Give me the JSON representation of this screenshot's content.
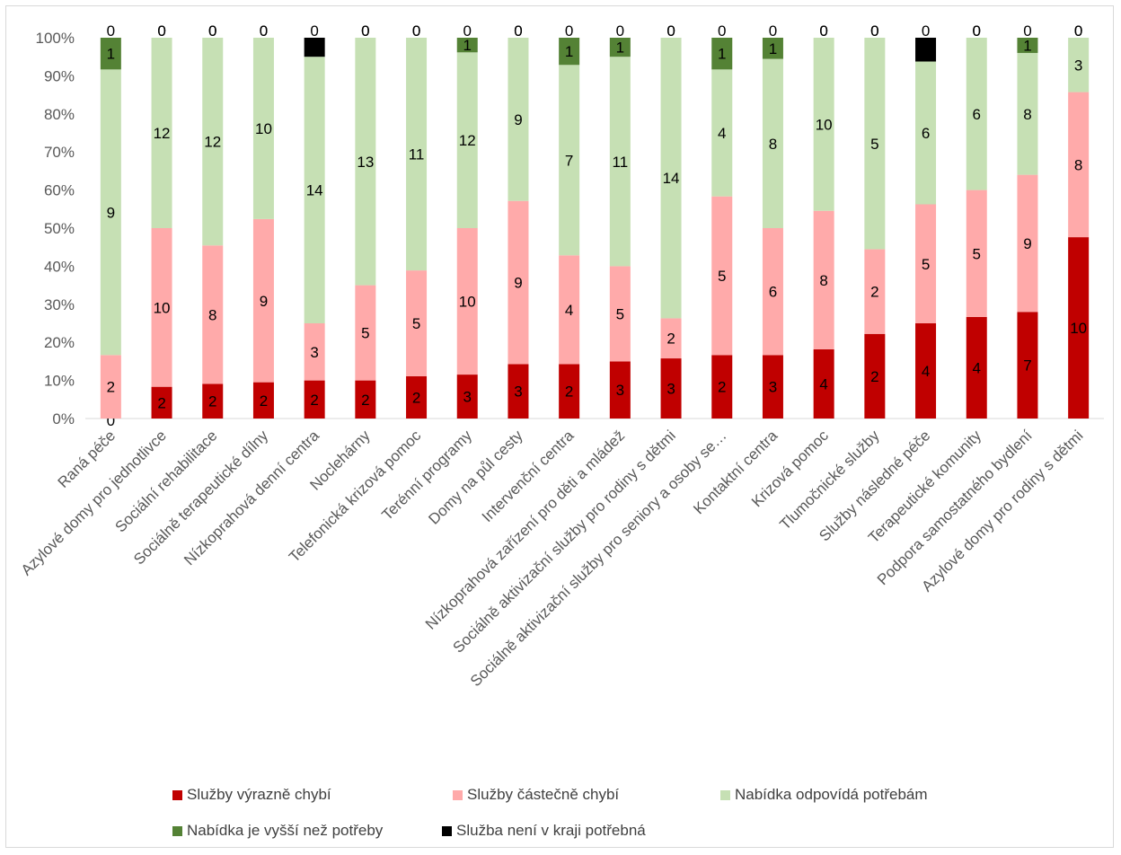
{
  "chart_data": {
    "type": "bar",
    "stacked": "percent",
    "title": "",
    "xlabel": "",
    "ylabel": "",
    "ylim": [
      0,
      100
    ],
    "y_ticks": [
      "0%",
      "10%",
      "20%",
      "30%",
      "40%",
      "50%",
      "60%",
      "70%",
      "80%",
      "90%",
      "100%"
    ],
    "grid": false,
    "legend_position": "bottom",
    "categories": [
      "Raná péče",
      "Azylové domy pro jednotlivce",
      "Sociální rehabilitace",
      "Sociálně terapeutické dílny",
      "Nízkoprahová denní centra",
      "Noclehárny",
      "Telefonická krizová pomoc",
      "Terénní programy",
      "Domy na půl cesty",
      "Intervenční centra",
      "Nízkoprahová zařízení pro děti a mládež",
      "Sociálně aktivizační služby pro rodiny s dětmi",
      "Sociálně aktivizační služby pro seniory a osoby se…",
      "Kontaktní centra",
      "Krizová pomoc",
      "Tlumočnické služby",
      "Služby následné péče",
      "Terapeutické komunity",
      "Podpora samostatného bydlení",
      "Azylové domy pro rodiny s dětmi"
    ],
    "series": [
      {
        "name": "Služby výrazně chybí",
        "color": "#c00000",
        "values": [
          0,
          2,
          2,
          2,
          2,
          2,
          2,
          3,
          3,
          2,
          3,
          3,
          2,
          3,
          4,
          2,
          4,
          4,
          7,
          10
        ]
      },
      {
        "name": "Služby částečně chybí",
        "color": "#ffaaaa",
        "values": [
          2,
          10,
          8,
          9,
          3,
          5,
          5,
          10,
          9,
          4,
          5,
          2,
          5,
          6,
          8,
          2,
          5,
          5,
          9,
          8
        ]
      },
      {
        "name": "Nabídka odpovídá potřebám",
        "color": "#c6e0b4",
        "values": [
          9,
          12,
          12,
          10,
          14,
          13,
          11,
          12,
          9,
          7,
          11,
          14,
          4,
          8,
          10,
          5,
          6,
          6,
          8,
          3
        ]
      },
      {
        "name": "Nabídka je vyšší než potřeby",
        "color": "#548235",
        "values": [
          1,
          0,
          0,
          0,
          0,
          0,
          0,
          1,
          0,
          1,
          1,
          0,
          1,
          1,
          0,
          0,
          0,
          0,
          1,
          0
        ]
      },
      {
        "name": "Služba není v kraji potřebná",
        "color": "#000000",
        "values": [
          0,
          0,
          0,
          0,
          1,
          0,
          0,
          0,
          0,
          0,
          0,
          0,
          0,
          0,
          0,
          0,
          1,
          0,
          0,
          0
        ]
      }
    ]
  }
}
